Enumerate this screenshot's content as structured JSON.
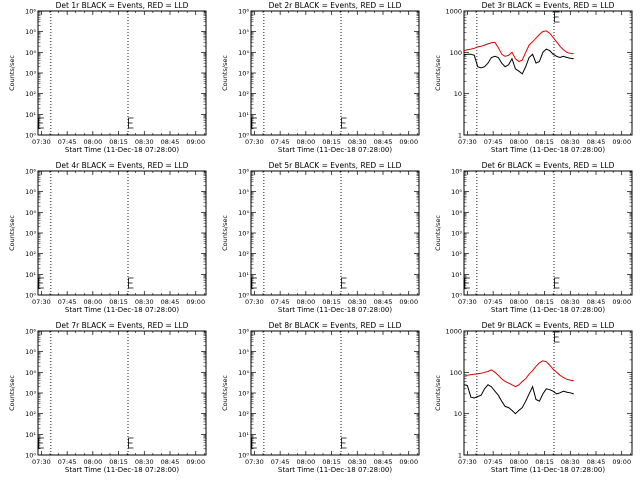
{
  "figure": {
    "black_color": "#000000",
    "red_color": "#e00000",
    "ticks_time": [
      "07:30",
      "07:45",
      "08:00",
      "08:15",
      "08:30",
      "08:45",
      "09:00"
    ],
    "xlabel": "Start Time (11-Dec-18 07:28:00)",
    "ylabel": "Counts/sec",
    "vlines_minutes": [
      7.5,
      52.5
    ],
    "e_marker_minutes_left": -1.0,
    "e_marker_minutes_right": 52.8
  },
  "chart_data": [
    {
      "type": "line",
      "title": "Det 1r BLACK = Events, RED = LLD",
      "xlabel": "Start Time (11-Dec-18 07:28:00)",
      "ylabel": "Counts/sec",
      "yscale": "log",
      "ylim": [
        1,
        1000000
      ],
      "yticks": [
        "10⁰",
        "10¹",
        "10²",
        "10³",
        "10⁴",
        "10⁵",
        "10⁶"
      ],
      "x_minutes_from_start": [],
      "series": []
    },
    {
      "type": "line",
      "title": "Det 2r BLACK = Events, RED = LLD",
      "xlabel": "Start Time (11-Dec-18 07:28:00)",
      "ylabel": "Counts/sec",
      "yscale": "log",
      "ylim": [
        1,
        1000000
      ],
      "yticks": [
        "10⁰",
        "10¹",
        "10²",
        "10³",
        "10⁴",
        "10⁵",
        "10⁶"
      ],
      "x_minutes_from_start": [],
      "series": []
    },
    {
      "type": "line",
      "title": "Det 3r BLACK = Events, RED = LLD",
      "xlabel": "Start Time (11-Dec-18 07:28:00)",
      "ylabel": "Counts/sec",
      "yscale": "log",
      "ylim": [
        1,
        1000
      ],
      "yticks": [
        "1",
        "10",
        "100",
        "1000"
      ],
      "x_minutes_from_start": [
        0,
        2,
        4,
        6,
        8,
        10,
        12,
        14,
        16,
        18,
        20,
        22,
        24,
        26,
        28,
        30,
        32,
        34,
        36,
        38,
        40,
        42,
        44,
        46,
        48,
        50,
        52,
        54,
        56,
        58,
        60,
        62,
        64
      ],
      "series": [
        {
          "color": "red",
          "values": [
            110,
            115,
            120,
            125,
            135,
            140,
            150,
            160,
            170,
            175,
            130,
            90,
            80,
            85,
            100,
            70,
            60,
            65,
            100,
            150,
            180,
            220,
            270,
            320,
            330,
            290,
            230,
            180,
            140,
            115,
            100,
            95,
            92
          ]
        },
        {
          "color": "black",
          "values": [
            85,
            90,
            90,
            85,
            45,
            42,
            45,
            55,
            75,
            80,
            75,
            55,
            45,
            50,
            70,
            40,
            35,
            30,
            45,
            75,
            90,
            55,
            60,
            100,
            120,
            110,
            90,
            80,
            75,
            80,
            75,
            72,
            70
          ]
        }
      ]
    },
    {
      "type": "line",
      "title": "Det 4r BLACK = Events, RED = LLD",
      "xlabel": "Start Time (11-Dec-18 07:28:00)",
      "ylabel": "Counts/sec",
      "yscale": "log",
      "ylim": [
        1,
        1000000
      ],
      "yticks": [
        "10⁰",
        "10¹",
        "10²",
        "10³",
        "10⁴",
        "10⁵",
        "10⁶"
      ],
      "x_minutes_from_start": [],
      "series": []
    },
    {
      "type": "line",
      "title": "Det 5r BLACK = Events, RED = LLD",
      "xlabel": "Start Time (11-Dec-18 07:28:00)",
      "ylabel": "Counts/sec",
      "yscale": "log",
      "ylim": [
        1,
        1000000
      ],
      "yticks": [
        "10⁰",
        "10¹",
        "10²",
        "10³",
        "10⁴",
        "10⁵",
        "10⁶"
      ],
      "x_minutes_from_start": [],
      "series": []
    },
    {
      "type": "line",
      "title": "Det 6r BLACK = Events, RED = LLD",
      "xlabel": "Start Time (11-Dec-18 07:28:00)",
      "ylabel": "Counts/sec",
      "yscale": "log",
      "ylim": [
        1,
        1000000
      ],
      "yticks": [
        "10⁰",
        "10¹",
        "10²",
        "10³",
        "10⁴",
        "10⁵",
        "10⁶"
      ],
      "x_minutes_from_start": [],
      "series": []
    },
    {
      "type": "line",
      "title": "Det 7r BLACK = Events, RED = LLD",
      "xlabel": "Start Time (11-Dec-18 07:28:00)",
      "ylabel": "Counts/sec",
      "yscale": "log",
      "ylim": [
        1,
        1000000
      ],
      "yticks": [
        "10⁰",
        "10¹",
        "10²",
        "10³",
        "10⁴",
        "10⁵",
        "10⁶"
      ],
      "x_minutes_from_start": [],
      "series": []
    },
    {
      "type": "line",
      "title": "Det 8r BLACK = Events, RED = LLD",
      "xlabel": "Start Time (11-Dec-18 07:28:00)",
      "ylabel": "Counts/sec",
      "yscale": "log",
      "ylim": [
        1,
        1000000
      ],
      "yticks": [
        "10⁰",
        "10¹",
        "10²",
        "10³",
        "10⁴",
        "10⁵",
        "10⁶"
      ],
      "x_minutes_from_start": [],
      "series": []
    },
    {
      "type": "line",
      "title": "Det 9r BLACK = Events, RED = LLD",
      "xlabel": "Start Time (11-Dec-18 07:28:00)",
      "ylabel": "Counts/sec",
      "yscale": "log",
      "ylim": [
        1,
        1000
      ],
      "yticks": [
        "1",
        "10",
        "100",
        "1000"
      ],
      "x_minutes_from_start": [
        0,
        2,
        4,
        6,
        8,
        10,
        12,
        14,
        16,
        18,
        20,
        22,
        24,
        26,
        28,
        30,
        32,
        34,
        36,
        38,
        40,
        42,
        44,
        46,
        48,
        50,
        52,
        54,
        56,
        58,
        60,
        62,
        64
      ],
      "series": [
        {
          "color": "red",
          "values": [
            80,
            85,
            88,
            90,
            92,
            95,
            100,
            105,
            115,
            100,
            85,
            70,
            60,
            55,
            50,
            45,
            50,
            60,
            70,
            90,
            110,
            140,
            170,
            190,
            180,
            150,
            120,
            100,
            85,
            75,
            68,
            65,
            62
          ]
        },
        {
          "color": "black",
          "values": [
            50,
            48,
            25,
            24,
            26,
            28,
            40,
            50,
            45,
            35,
            28,
            20,
            15,
            14,
            12,
            10,
            12,
            14,
            20,
            30,
            45,
            22,
            20,
            30,
            40,
            38,
            35,
            30,
            32,
            35,
            33,
            32,
            30
          ]
        }
      ]
    }
  ]
}
